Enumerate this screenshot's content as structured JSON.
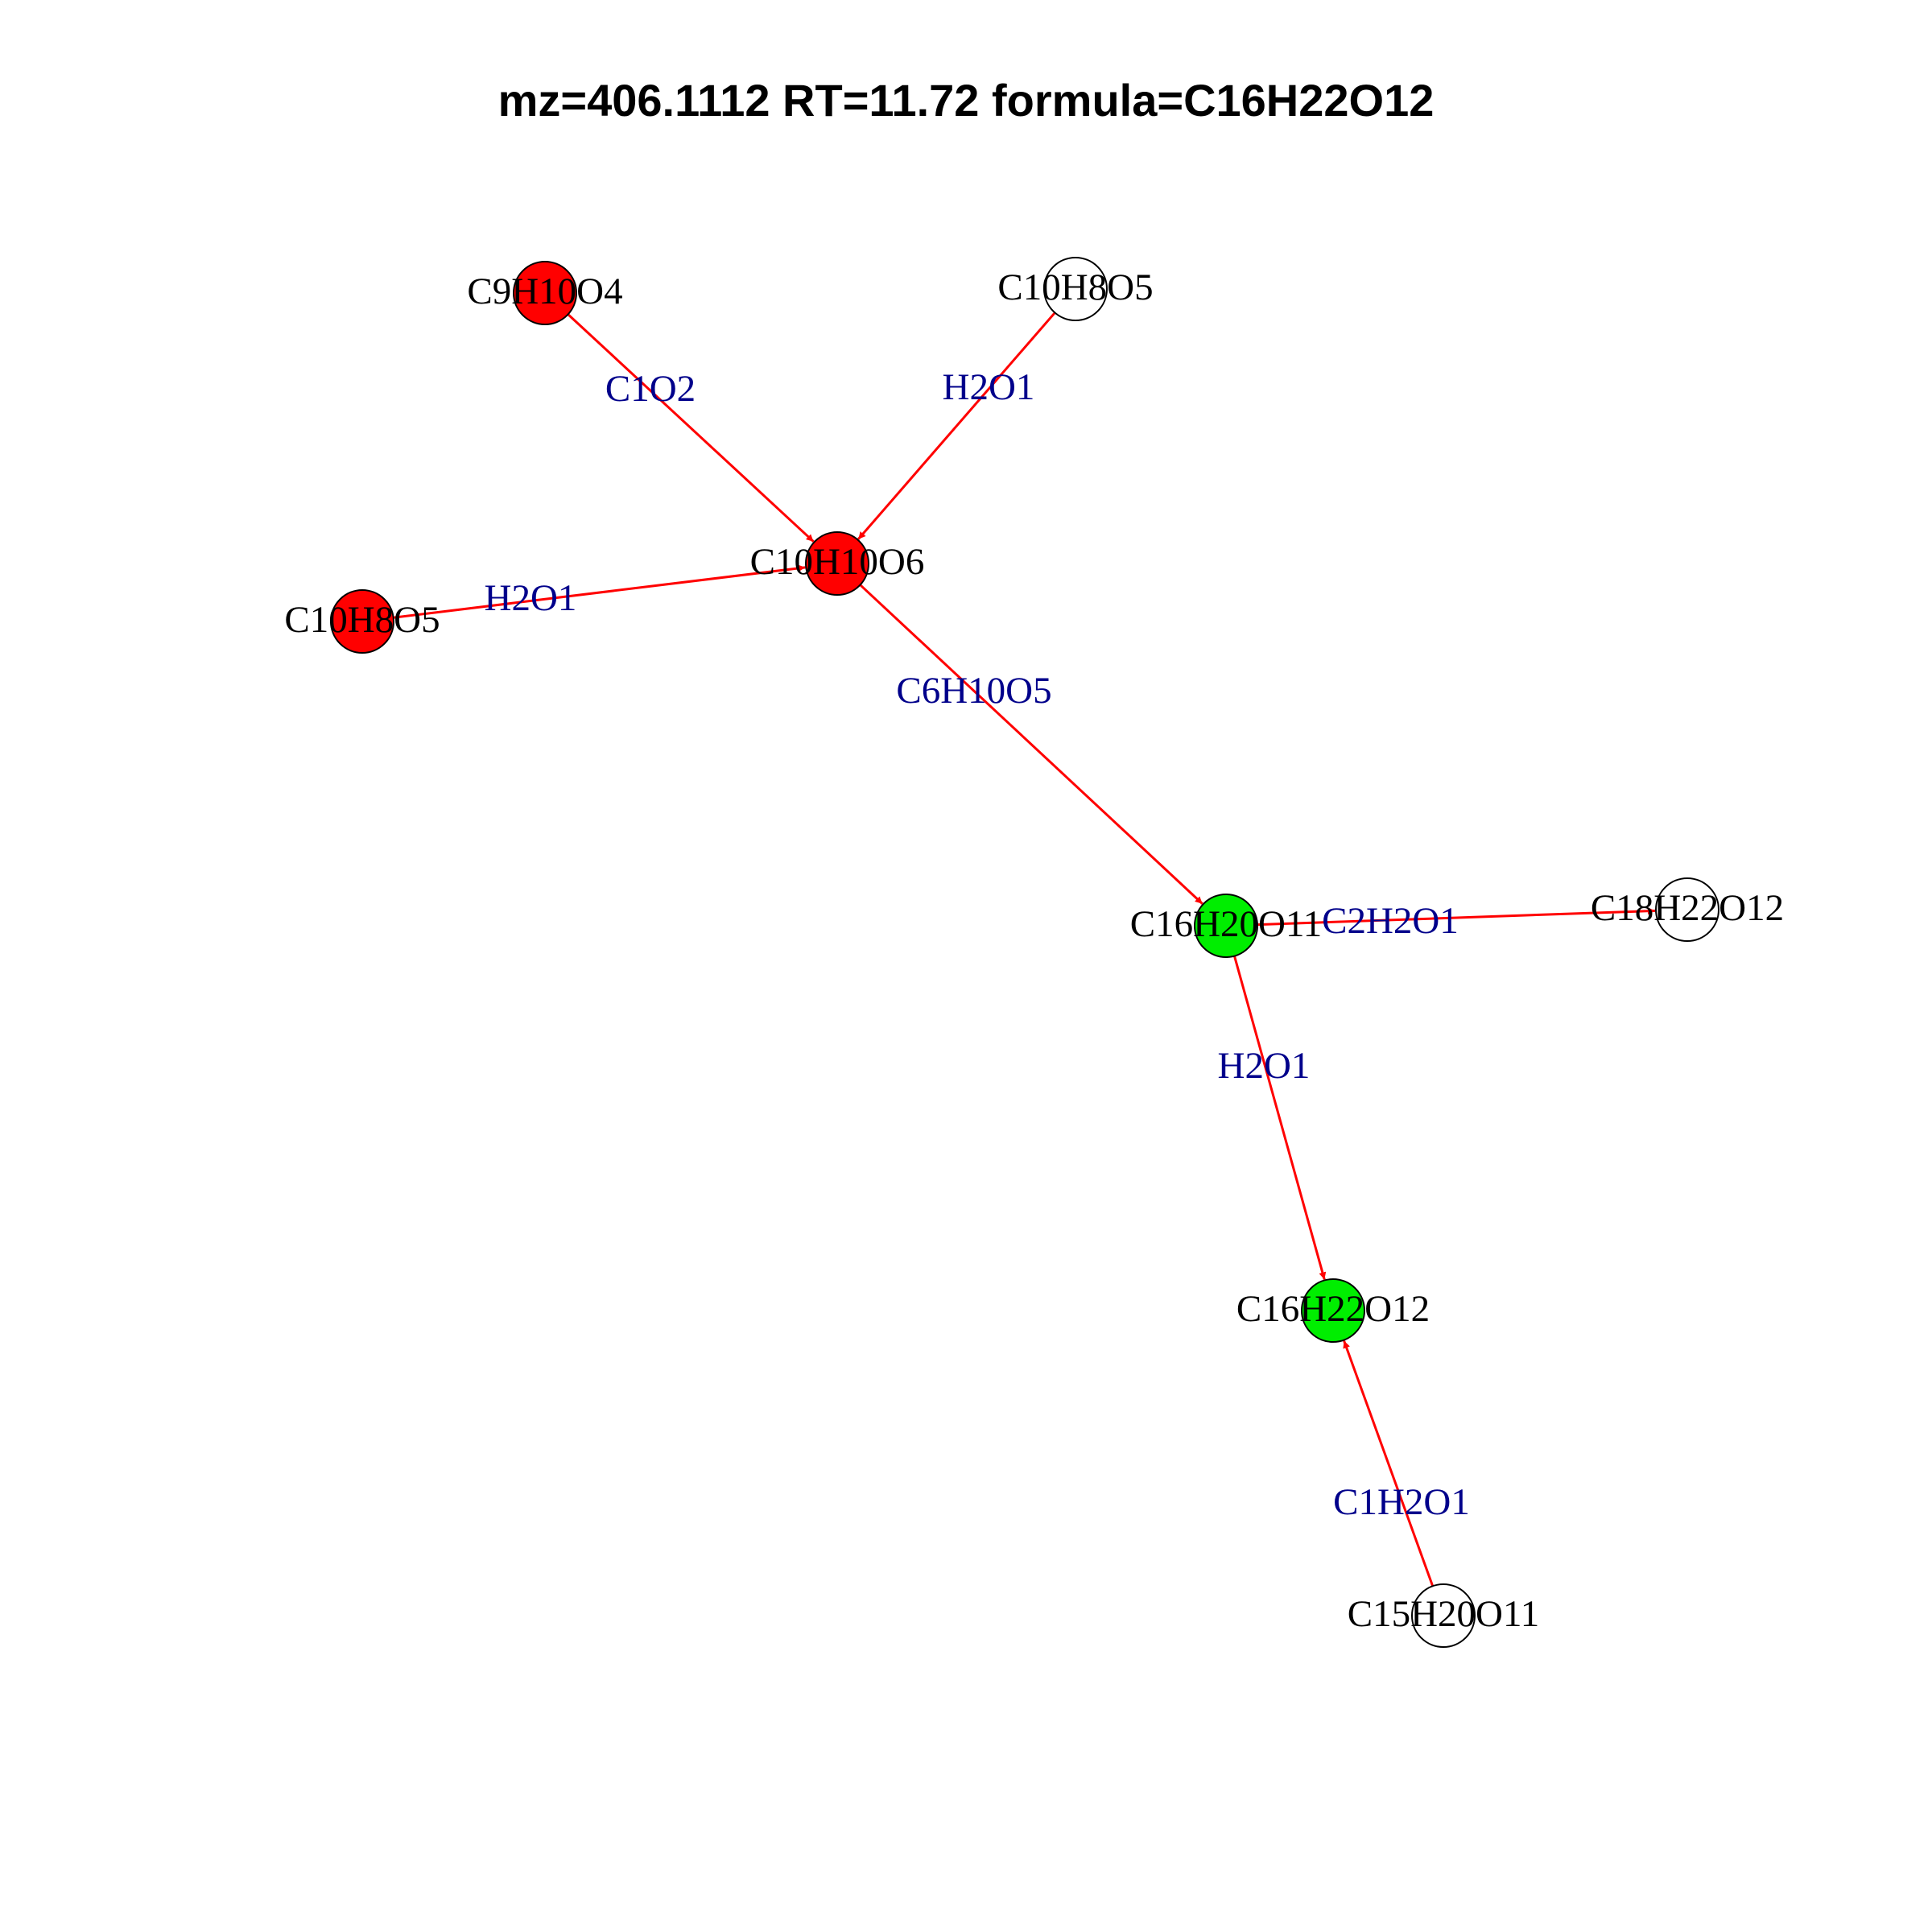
{
  "title": "mz=406.1112 RT=11.72 formula=C16H22O12",
  "colors": {
    "edge": "#ff0000",
    "edge_label": "#00008b",
    "node_red": "#ff0000",
    "node_green": "#00ee00",
    "node_empty": "#ffffff",
    "node_stroke": "#000000"
  },
  "nodes": [
    {
      "id": "n1",
      "label": "C9H10O4",
      "color": "red"
    },
    {
      "id": "n2",
      "label": "C10H8O5",
      "color": "empty"
    },
    {
      "id": "n3",
      "label": "C10H10O6",
      "color": "red"
    },
    {
      "id": "n4",
      "label": "C10H8O5",
      "color": "red"
    },
    {
      "id": "n5",
      "label": "C16H20O11",
      "color": "green"
    },
    {
      "id": "n6",
      "label": "C18H22O12",
      "color": "empty"
    },
    {
      "id": "n7",
      "label": "C16H22O12",
      "color": "green"
    },
    {
      "id": "n8",
      "label": "C15H20O11",
      "color": "empty"
    }
  ],
  "edges": [
    {
      "from": "n1",
      "to": "n3",
      "label": "C1O2"
    },
    {
      "from": "n2",
      "to": "n3",
      "label": "H2O1"
    },
    {
      "from": "n4",
      "to": "n3",
      "label": "H2O1"
    },
    {
      "from": "n3",
      "to": "n5",
      "label": "C6H10O5"
    },
    {
      "from": "n5",
      "to": "n6",
      "label": "C2H2O1"
    },
    {
      "from": "n5",
      "to": "n7",
      "label": "H2O1"
    },
    {
      "from": "n8",
      "to": "n7",
      "label": "C1H2O1"
    }
  ]
}
